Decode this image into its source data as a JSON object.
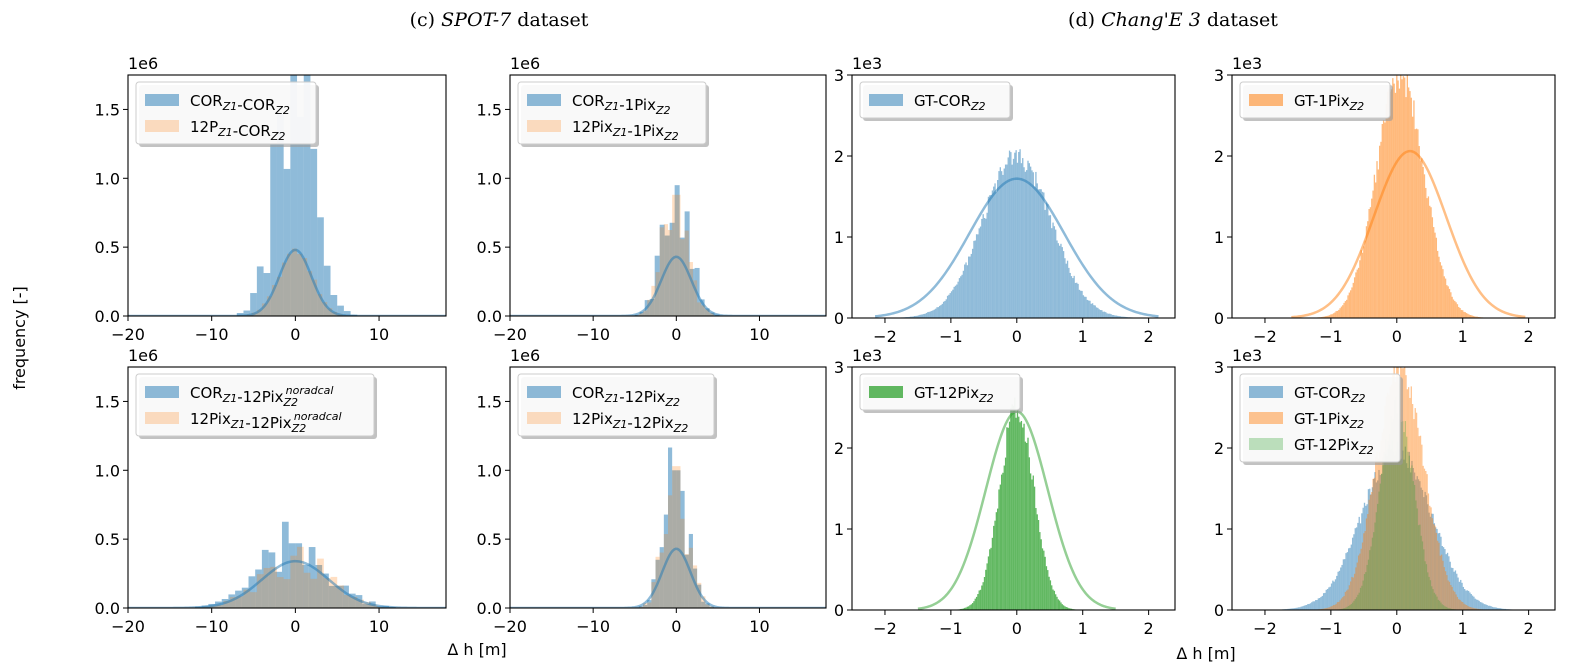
{
  "figure": {
    "ylabel": "frequency [-]",
    "groups": [
      {
        "prefix": "(c) ",
        "name": "SPOT-7",
        "suffix": " dataset",
        "xlabel": "Δ h [m]"
      },
      {
        "prefix": "(d) ",
        "name": "Chang'E 3",
        "suffix": " dataset",
        "xlabel": "Δ h [m]"
      }
    ]
  },
  "colors": {
    "blue": "#1f77b4",
    "orange": "#ff7f0e",
    "green": "#2ca02c"
  },
  "chart_data": [
    {
      "type": "bar",
      "subtype": "histogram",
      "panel": "SPOT-7 top-left",
      "xlim": [
        -20,
        18
      ],
      "ylim": [
        0,
        1750000
      ],
      "offset_label": "1e6",
      "xticks": [
        -20,
        -10,
        0,
        10
      ],
      "xtick_labels": [
        "−20",
        "−10",
        "0",
        "10"
      ],
      "yticks": [
        0,
        500000,
        1000000,
        1500000
      ],
      "ytick_labels": [
        "0.0",
        "0.5",
        "1.0",
        "1.5"
      ],
      "series": [
        {
          "legend": [
            "COR",
            "Z1",
            "",
            "-COR",
            "Z2",
            ""
          ],
          "color": "blue",
          "alpha": 0.5,
          "sigma": 2.2,
          "peak": 1750000,
          "spiky": true,
          "binwidth": 0.8,
          "seed": 11,
          "fit_peak": 480000,
          "fit_sigma": 1.9
        },
        {
          "legend": [
            "12P",
            "Z1",
            "",
            "-COR",
            "Z2",
            ""
          ],
          "color": "orange",
          "alpha": 0.25,
          "sigma": 2.0,
          "peak": 480000,
          "spiky": false,
          "binwidth": 0.6,
          "seed": 12
        }
      ]
    },
    {
      "type": "bar",
      "subtype": "histogram",
      "panel": "SPOT-7 top-right",
      "xlim": [
        -20,
        18
      ],
      "ylim": [
        0,
        1750000
      ],
      "offset_label": "1e6",
      "xticks": [
        -20,
        -10,
        0,
        10
      ],
      "xtick_labels": [
        "−20",
        "−10",
        "0",
        "10"
      ],
      "yticks": [
        0,
        500000,
        1000000,
        1500000
      ],
      "ytick_labels": [
        "0.0",
        "0.5",
        "1.0",
        "1.5"
      ],
      "series": [
        {
          "legend": [
            "COR",
            "Z1",
            "",
            "-1Pix",
            "Z2",
            ""
          ],
          "color": "blue",
          "alpha": 0.5,
          "sigma": 1.6,
          "peak": 950000,
          "spiky": true,
          "binwidth": 0.6,
          "seed": 21,
          "fit_peak": 430000,
          "fit_sigma": 1.8
        },
        {
          "legend": [
            "12Pix",
            "Z1",
            "",
            "-1Pix",
            "Z2",
            ""
          ],
          "color": "orange",
          "alpha": 0.25,
          "sigma": 1.5,
          "peak": 880000,
          "spiky": true,
          "binwidth": 0.5,
          "seed": 22
        }
      ]
    },
    {
      "type": "bar",
      "subtype": "histogram",
      "panel": "Chang'E 3 top-left",
      "xlim": [
        -2.5,
        2.4
      ],
      "ylim": [
        0,
        3000
      ],
      "offset_label": "1e3",
      "xticks": [
        -2,
        -1,
        0,
        1,
        2
      ],
      "xtick_labels": [
        "−2",
        "−1",
        "0",
        "1",
        "2"
      ],
      "yticks": [
        0,
        1000,
        2000,
        3000
      ],
      "ytick_labels": [
        "0",
        "1",
        "2",
        "3"
      ],
      "series": [
        {
          "legend": [
            "GT-COR",
            "Z2",
            ""
          ],
          "color": "blue",
          "alpha": 0.5,
          "sigma": 0.52,
          "peak": 1980,
          "spiky": false,
          "binwidth": 0.02,
          "seed": 31,
          "fit_peak": 1720,
          "fit_sigma": 0.72,
          "fit_range": [
            -2.15,
            2.15
          ]
        }
      ]
    },
    {
      "type": "bar",
      "subtype": "histogram",
      "panel": "Chang'E 3 top-right",
      "xlim": [
        -2.5,
        2.4
      ],
      "ylim": [
        0,
        3000
      ],
      "offset_label": "1e3",
      "xticks": [
        -2,
        -1,
        0,
        1,
        2
      ],
      "xtick_labels": [
        "−2",
        "−1",
        "0",
        "1",
        "2"
      ],
      "yticks": [
        0,
        1000,
        2000,
        3000
      ],
      "ytick_labels": [
        "0",
        "1",
        "2",
        "3"
      ],
      "series": [
        {
          "legend": [
            "GT-1Pix",
            "Z2",
            ""
          ],
          "color": "orange",
          "alpha": 0.55,
          "sigma": 0.36,
          "center": 0.05,
          "peak": 3000,
          "spiky": false,
          "binwidth": 0.02,
          "seed": 41,
          "fit_peak": 2060,
          "fit_sigma": 0.55,
          "fit_center": 0.2,
          "fit_range": [
            -1.6,
            1.95
          ]
        }
      ]
    },
    {
      "type": "bar",
      "subtype": "histogram",
      "panel": "SPOT-7 bottom-left",
      "xlim": [
        -20,
        18
      ],
      "ylim": [
        0,
        1750000
      ],
      "offset_label": "1e6",
      "xticks": [
        -20,
        -10,
        0,
        10
      ],
      "xtick_labels": [
        "−20",
        "−10",
        "0",
        "10"
      ],
      "yticks": [
        0,
        500000,
        1000000,
        1500000
      ],
      "ytick_labels": [
        "0.0",
        "0.5",
        "1.0",
        "1.5"
      ],
      "series": [
        {
          "legend": [
            "COR",
            "Z1",
            "",
            "-12Pix",
            "Z2",
            "noradcal"
          ],
          "color": "blue",
          "alpha": 0.5,
          "sigma": 4.0,
          "peak": 470000,
          "spiky": true,
          "binwidth": 0.8,
          "seed": 51,
          "fit_peak": 340000,
          "fit_sigma": 4.0
        },
        {
          "legend": [
            "12Pix",
            "Z1",
            "",
            "-12Pix",
            "Z2",
            "noradcal"
          ],
          "color": "orange",
          "alpha": 0.25,
          "sigma": 3.8,
          "peak": 380000,
          "spiky": true,
          "binwidth": 0.8,
          "seed": 52
        }
      ]
    },
    {
      "type": "bar",
      "subtype": "histogram",
      "panel": "SPOT-7 bottom-right",
      "xlim": [
        -20,
        18
      ],
      "ylim": [
        0,
        1750000
      ],
      "offset_label": "1e6",
      "xticks": [
        -20,
        -10,
        0,
        10
      ],
      "xtick_labels": [
        "−20",
        "−10",
        "0",
        "10"
      ],
      "yticks": [
        0,
        500000,
        1000000,
        1500000
      ],
      "ytick_labels": [
        "0.0",
        "0.5",
        "1.0",
        "1.5"
      ],
      "series": [
        {
          "legend": [
            "COR",
            "Z1",
            "",
            "-12Pix",
            "Z2",
            ""
          ],
          "color": "blue",
          "alpha": 0.5,
          "sigma": 1.4,
          "peak": 1000000,
          "spiky": true,
          "binwidth": 0.5,
          "seed": 61,
          "fit_peak": 430000,
          "fit_sigma": 1.7
        },
        {
          "legend": [
            "12Pix",
            "Z1",
            "",
            "-12Pix",
            "Z2",
            ""
          ],
          "color": "orange",
          "alpha": 0.25,
          "sigma": 1.4,
          "peak": 1030000,
          "spiky": true,
          "binwidth": 0.5,
          "seed": 62
        }
      ]
    },
    {
      "type": "bar",
      "subtype": "histogram",
      "panel": "Chang'E 3 bottom-left",
      "xlim": [
        -2.5,
        2.4
      ],
      "ylim": [
        0,
        3000
      ],
      "offset_label": "1e3",
      "xticks": [
        -2,
        -1,
        0,
        1,
        2
      ],
      "xtick_labels": [
        "−2",
        "−1",
        "0",
        "1",
        "2"
      ],
      "yticks": [
        0,
        1000,
        2000,
        3000
      ],
      "ytick_labels": [
        "0",
        "1",
        "2",
        "3"
      ],
      "series": [
        {
          "legend": [
            "GT-12Pix",
            "Z2",
            ""
          ],
          "color": "green",
          "alpha": 0.75,
          "sigma": 0.26,
          "peak": 2500,
          "spiky": false,
          "binwidth": 0.02,
          "seed": 71,
          "fit_peak": 2450,
          "fit_sigma": 0.47,
          "fit_range": [
            -1.5,
            1.5
          ]
        }
      ]
    },
    {
      "type": "bar",
      "subtype": "histogram",
      "panel": "Chang'E 3 bottom-right",
      "xlim": [
        -2.5,
        2.4
      ],
      "ylim": [
        0,
        3000
      ],
      "offset_label": "1e3",
      "xticks": [
        -2,
        -1,
        0,
        1,
        2
      ],
      "xtick_labels": [
        "−2",
        "−1",
        "0",
        "1",
        "2"
      ],
      "yticks": [
        0,
        1000,
        2000,
        3000
      ],
      "ytick_labels": [
        "0",
        "1",
        "2",
        "3"
      ],
      "series": [
        {
          "legend": [
            "GT-COR",
            "Z2",
            ""
          ],
          "color": "blue",
          "alpha": 0.5,
          "sigma": 0.52,
          "peak": 1980,
          "spiky": false,
          "binwidth": 0.02,
          "seed": 81
        },
        {
          "legend": [
            "GT-1Pix",
            "Z2",
            ""
          ],
          "color": "orange",
          "alpha": 0.45,
          "sigma": 0.36,
          "center": 0.05,
          "peak": 3000,
          "spiky": false,
          "binwidth": 0.02,
          "seed": 82
        },
        {
          "legend": [
            "GT-12Pix",
            "Z2",
            ""
          ],
          "color": "green",
          "alpha": 0.3,
          "sigma": 0.26,
          "peak": 2500,
          "spiky": false,
          "binwidth": 0.02,
          "seed": 83
        }
      ]
    }
  ]
}
